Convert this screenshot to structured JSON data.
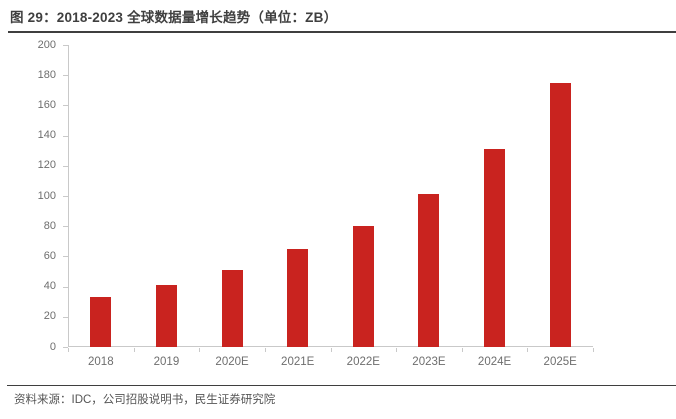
{
  "title": "图 29：2018-2023 全球数据量增长趋势（单位：ZB）",
  "source_note": "资料来源：IDC，公司招股说明书，民生证券研究院",
  "colors": {
    "bar": "#c9231f",
    "title_text": "#3f3f3f",
    "rule": "#3f3f3f",
    "axis_line": "#c9c9c9",
    "axis_label": "#6e6e6e"
  },
  "chart_data": {
    "type": "bar",
    "title": "图 29：2018-2023 全球数据量增长趋势（单位：ZB）",
    "categories": [
      "2018",
      "2019",
      "2020E",
      "2021E",
      "2022E",
      "2023E",
      "2024E",
      "2025E"
    ],
    "values": [
      33,
      41,
      51,
      65,
      80,
      101,
      131,
      175
    ],
    "xlabel": "",
    "ylabel": "",
    "unit": "ZB",
    "ylim": [
      0,
      200
    ],
    "ytick_step": 20,
    "yticks": [
      0,
      20,
      40,
      60,
      80,
      100,
      120,
      140,
      160,
      180,
      200
    ],
    "grid": false,
    "legend_position": "none",
    "bar_color": "#c9231f"
  }
}
